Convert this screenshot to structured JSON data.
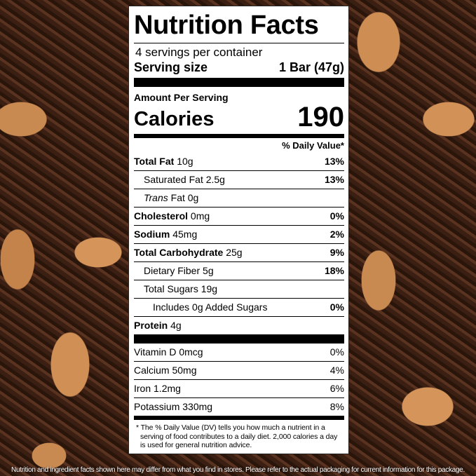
{
  "label": {
    "title": "Nutrition Facts",
    "servings_per_container": "4 servings per container",
    "serving_size_label": "Serving size",
    "serving_size_value": "1 Bar (47g)",
    "amount_per_serving": "Amount Per Serving",
    "calories_label": "Calories",
    "calories_value": "190",
    "daily_value_header": "% Daily Value*",
    "nutrients": [
      {
        "name": "Total Fat",
        "amount": "10g",
        "dv": "13%",
        "bold": true,
        "indent": 0
      },
      {
        "name": "Saturated Fat",
        "amount": "2.5g",
        "dv": "13%",
        "bold": false,
        "indent": 1
      },
      {
        "name": "Trans",
        "name_suffix": "Fat",
        "amount": "0g",
        "dv": "",
        "bold": false,
        "indent": 1
      },
      {
        "name": "Cholesterol",
        "amount": "0mg",
        "dv": "0%",
        "bold": true,
        "indent": 0
      },
      {
        "name": "Sodium",
        "amount": "45mg",
        "dv": "2%",
        "bold": true,
        "indent": 0
      },
      {
        "name": "Total Carbohydrate",
        "amount": "25g",
        "dv": "9%",
        "bold": true,
        "indent": 0
      },
      {
        "name": "Dietary Fiber",
        "amount": "5g",
        "dv": "18%",
        "bold": false,
        "indent": 1
      },
      {
        "name": "Total Sugars",
        "amount": "19g",
        "dv": "",
        "bold": false,
        "indent": 1
      },
      {
        "name": "Includes 0g Added Sugars",
        "amount": "",
        "dv": "0%",
        "bold": false,
        "indent": 2
      },
      {
        "name": "Protein",
        "amount": "4g",
        "dv": "",
        "bold": true,
        "indent": 0
      }
    ],
    "vitamins": [
      {
        "name": "Vitamin D",
        "amount": "0mcg",
        "dv": "0%"
      },
      {
        "name": "Calcium",
        "amount": "50mg",
        "dv": "4%"
      },
      {
        "name": "Iron",
        "amount": "1.2mg",
        "dv": "6%"
      },
      {
        "name": "Potassium",
        "amount": "330mg",
        "dv": "8%"
      }
    ],
    "footnote": "* The % Daily Value (DV) tells you how much a nutrient in a serving of food contributes to a daily diet. 2,000 calories a day is used for general nutrition advice."
  },
  "disclaimer": "Nutrition and ingredient facts shown here may differ from what you find in stores. Please refer to the actual packaging for current information for this package."
}
